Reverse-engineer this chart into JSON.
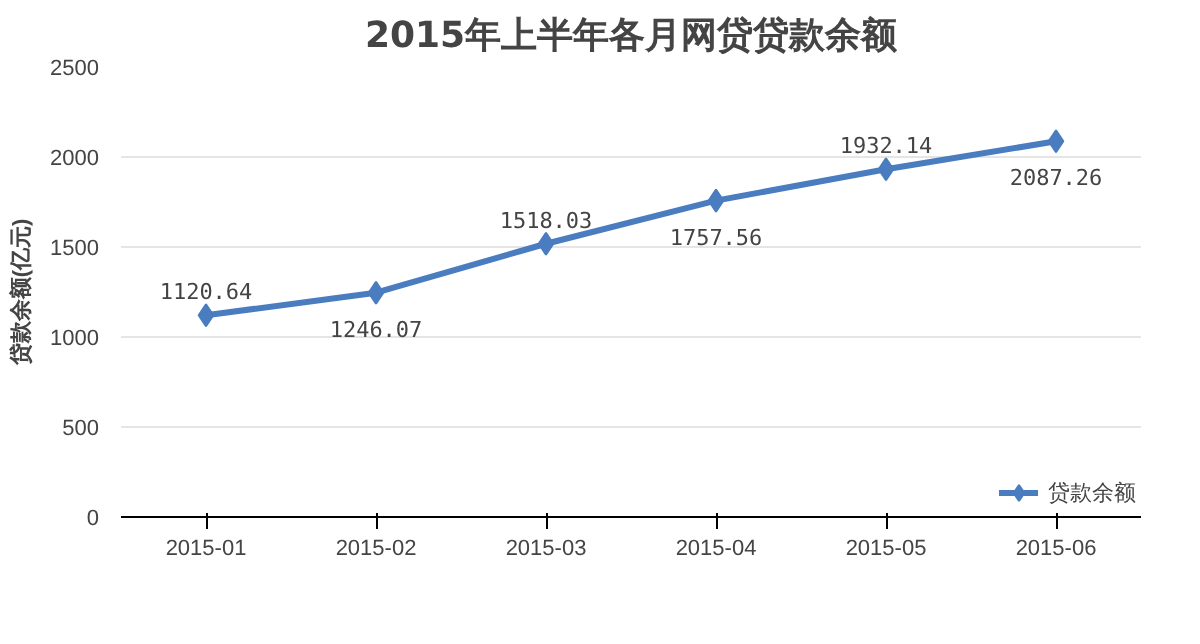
{
  "chart_data": {
    "type": "line",
    "title": "2015年上半年各月网贷贷款余额",
    "ylabel": "贷款余额(亿元)",
    "categories": [
      "2015-01",
      "2015-02",
      "2015-03",
      "2015-04",
      "2015-05",
      "2015-06"
    ],
    "series": [
      {
        "name": "贷款余额",
        "color": "#4a7cc0",
        "values": [
          1120.64,
          1246.07,
          1518.03,
          1757.56,
          1932.14,
          2087.26
        ]
      }
    ],
    "ylim": [
      0,
      2500
    ],
    "yticks": [
      0,
      500,
      1000,
      1500,
      2000,
      2500
    ],
    "grid": "y",
    "legend": "bottom right",
    "marker": "diamond",
    "data_labels": true
  }
}
